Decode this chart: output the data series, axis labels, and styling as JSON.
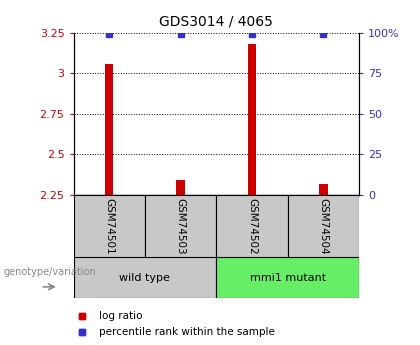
{
  "title": "GDS3014 / 4065",
  "samples": [
    "GSM74501",
    "GSM74503",
    "GSM74502",
    "GSM74504"
  ],
  "log_ratio": [
    3.06,
    2.34,
    3.18,
    2.32
  ],
  "percentile_rank": [
    99,
    99,
    99,
    99
  ],
  "ylim_left": [
    2.25,
    3.25
  ],
  "yticks_left": [
    2.25,
    2.5,
    2.75,
    3.0,
    3.25
  ],
  "yticks_right": [
    0,
    25,
    50,
    75,
    100
  ],
  "ylim_right": [
    0,
    100
  ],
  "bar_color": "#cc0000",
  "dot_color": "#3333cc",
  "groups": [
    {
      "label": "wild type",
      "indices": [
        0,
        1
      ],
      "color": "#c8c8c8"
    },
    {
      "label": "mmi1 mutant",
      "indices": [
        2,
        3
      ],
      "color": "#66ee66"
    }
  ],
  "legend_items": [
    {
      "label": "log ratio",
      "color": "#cc0000"
    },
    {
      "label": "percentile rank within the sample",
      "color": "#3333cc"
    }
  ],
  "genotype_label": "genotype/variation",
  "background_color": "#ffffff",
  "title_fontsize": 10,
  "tick_fontsize": 8,
  "bar_width": 0.12
}
